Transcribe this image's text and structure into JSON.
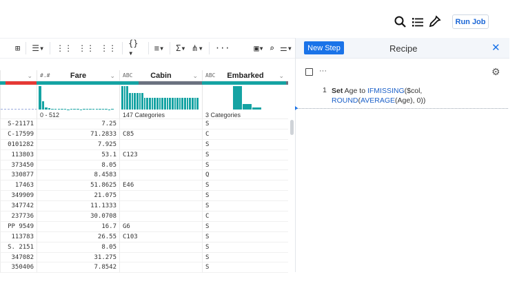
{
  "top": {
    "run_job": "Run Job",
    "icons": [
      "search-icon",
      "list-icon",
      "eyedropper-icon"
    ]
  },
  "toolbar": {
    "items": [
      "⊞",
      "☰▾",
      "⋮⋮",
      "⋮⋮",
      "⋮⋮",
      "{}▾",
      "≡▾",
      "Σ▾",
      "⋔▾",
      "···",
      "▣▾",
      "⌕",
      "⚌▾"
    ]
  },
  "columns": [
    {
      "name": "",
      "type": "",
      "summary": "",
      "values": [
        "S-21171",
        "C-17599",
        "0101282",
        "113803",
        "373450",
        "330877",
        "17463",
        "349909",
        "347742",
        "237736",
        "PP 9549",
        "113783",
        "S. 2151",
        "347082",
        "350406"
      ]
    },
    {
      "name": "Fare",
      "type": "#.#",
      "summary": "0 - 512",
      "values": [
        "7.25",
        "71.2833",
        "7.925",
        "53.1",
        "8.05",
        "8.4583",
        "51.8625",
        "21.075",
        "11.1333",
        "30.0708",
        "16.7",
        "26.55",
        "8.05",
        "31.275",
        "7.8542"
      ]
    },
    {
      "name": "Cabin",
      "type": "ABC",
      "summary": "147 Categories",
      "values": [
        "",
        "C85",
        "",
        "C123",
        "",
        "",
        "E46",
        "",
        "",
        "",
        "G6",
        "C103",
        "",
        "",
        ""
      ]
    },
    {
      "name": "Embarked",
      "type": "ABC",
      "summary": "3 Categories",
      "values": [
        "S",
        "C",
        "S",
        "S",
        "S",
        "Q",
        "S",
        "S",
        "S",
        "C",
        "S",
        "S",
        "S",
        "S",
        "S"
      ]
    }
  ],
  "histograms": {
    "fare": [
      100,
      34,
      8,
      5,
      3,
      2,
      2,
      2,
      2,
      0,
      2,
      2,
      2,
      0,
      1,
      1,
      1,
      1,
      1,
      1,
      1,
      1,
      0,
      1
    ],
    "cabin": [
      100,
      100,
      100,
      70,
      70,
      70,
      70,
      70,
      70,
      50,
      50,
      50,
      50,
      50,
      50,
      50,
      50,
      50,
      50,
      50,
      50,
      50,
      50,
      50,
      50,
      50,
      50,
      50,
      50,
      50,
      50
    ],
    "embarked": [
      100,
      24,
      10
    ]
  },
  "recipe": {
    "new_step": "New Step",
    "title": "Recipe",
    "step_number": "1",
    "step": [
      {
        "t": "Set",
        "c": "b"
      },
      {
        "t": " Age to ",
        "c": ""
      },
      {
        "t": "IFMISSING",
        "c": "kw"
      },
      {
        "t": "($col,",
        "c": ""
      },
      {
        "t": "ROUND",
        "c": "kw br"
      },
      {
        "t": "(",
        "c": ""
      },
      {
        "t": "AVERAGE",
        "c": "kw"
      },
      {
        "t": "(Age), 0))",
        "c": ""
      }
    ]
  },
  "colors": {
    "accent": "#1a73e8",
    "valid": "#15a3a3",
    "missing": "#6b7280",
    "mismatch": "#e53935"
  }
}
